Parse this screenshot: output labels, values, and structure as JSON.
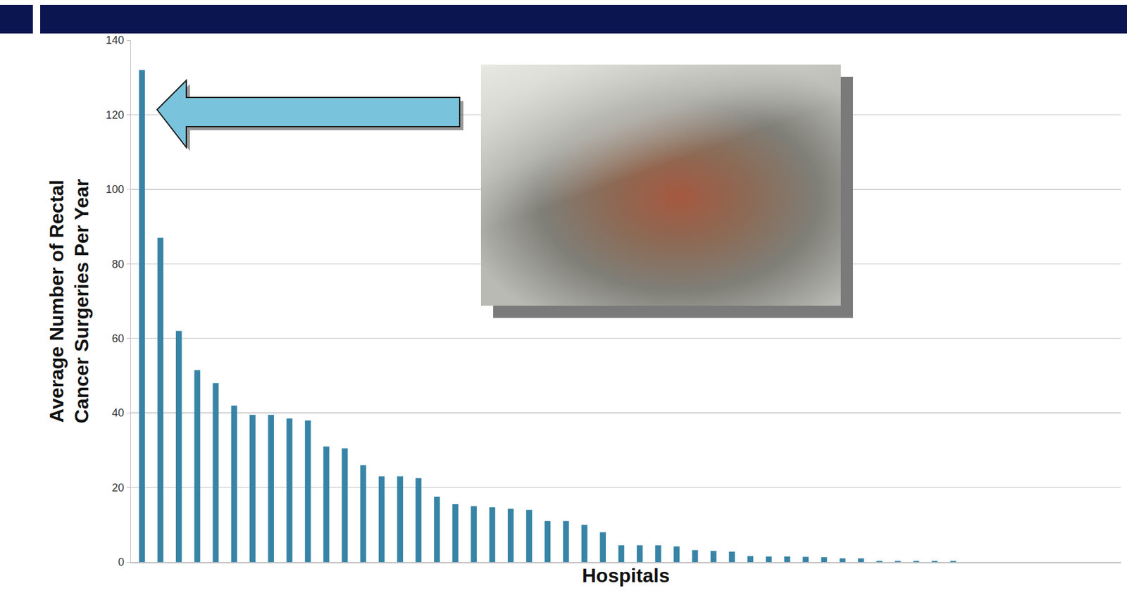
{
  "chart_data": {
    "type": "bar",
    "x_label": "Hospitals",
    "y_label": "Average Number of Rectal Cancer Surgeries Per Year",
    "categories": [
      null,
      null,
      null,
      null,
      null,
      null,
      null,
      null,
      null,
      null,
      null,
      null,
      null,
      null,
      null,
      null,
      null,
      null,
      null,
      null,
      null,
      null,
      null,
      null,
      null,
      null,
      null,
      null,
      null,
      null,
      null,
      null,
      null,
      null,
      null,
      null,
      null,
      null,
      null,
      null,
      null,
      null,
      null,
      null,
      null
    ],
    "values": [
      132,
      87,
      62,
      51.5,
      48,
      42,
      39.5,
      39.5,
      38.5,
      38,
      31,
      30.5,
      26,
      23,
      23,
      22.5,
      17.5,
      15.5,
      15,
      14.7,
      14.3,
      14,
      11,
      11,
      10,
      8,
      4.5,
      4.5,
      4.5,
      4.2,
      3.2,
      3,
      2.8,
      1.6,
      1.5,
      1.5,
      1.4,
      1.3,
      1,
      1,
      0.3,
      0.3,
      0.3,
      0.3,
      0.3
    ],
    "color": "#3784a6",
    "ylim": [
      0,
      140
    ],
    "yticks": [
      0,
      20,
      40,
      60,
      80,
      100,
      120,
      140
    ],
    "grid": true,
    "tick_labels": "y"
  }
}
